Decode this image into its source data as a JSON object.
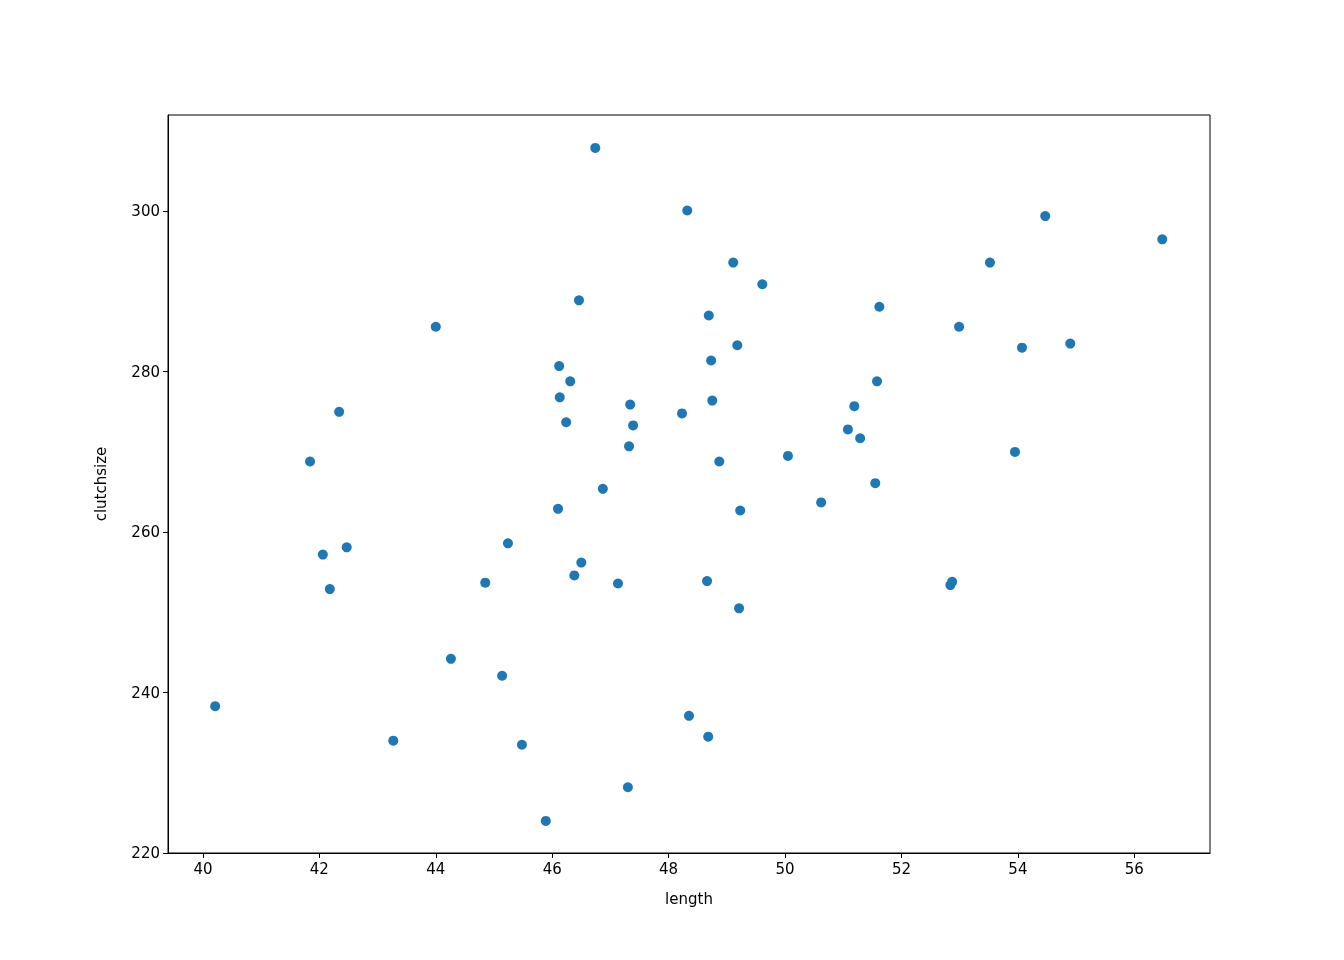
{
  "chart_data": {
    "type": "scatter",
    "xlabel": "length",
    "ylabel": "clutchsize",
    "xlim": [
      39.4,
      57.3
    ],
    "ylim": [
      220,
      312
    ],
    "xticks": [
      40,
      42,
      44,
      46,
      48,
      50,
      52,
      54,
      56
    ],
    "yticks": [
      220,
      240,
      260,
      280,
      300
    ],
    "grid": false,
    "marker": "circle",
    "series": [
      {
        "color": "#1f77b4",
        "x": [
          40.21,
          41.84,
          42.06,
          42.34,
          42.47,
          42.18,
          43.27,
          44.0,
          44.26,
          44.85,
          45.24,
          45.14,
          45.48,
          45.89,
          46.1,
          46.12,
          46.13,
          46.24,
          46.31,
          46.46,
          46.5,
          46.38,
          46.74,
          46.87,
          47.13,
          47.3,
          47.32,
          47.34,
          47.39,
          48.23,
          48.32,
          48.35,
          48.66,
          48.68,
          48.69,
          48.73,
          48.75,
          48.87,
          49.11,
          49.18,
          49.21,
          49.23,
          49.61,
          50.05,
          50.62,
          51.08,
          51.19,
          51.29,
          51.55,
          51.58,
          51.62,
          52.84,
          52.87,
          52.99,
          53.52,
          53.95,
          54.07,
          54.47,
          54.9,
          56.48
        ],
        "values": [
          238.3,
          268.8,
          257.2,
          275.0,
          258.1,
          252.9,
          234.0,
          285.6,
          244.2,
          253.7,
          258.6,
          242.1,
          233.5,
          224.0,
          262.9,
          280.7,
          276.8,
          273.7,
          278.8,
          288.9,
          256.2,
          254.6,
          307.9,
          265.4,
          253.6,
          228.2,
          270.7,
          275.9,
          273.3,
          274.8,
          300.1,
          237.1,
          253.9,
          234.5,
          287.0,
          281.4,
          276.4,
          268.8,
          293.6,
          283.3,
          250.5,
          262.7,
          290.9,
          269.5,
          263.7,
          272.8,
          275.7,
          271.7,
          266.1,
          278.8,
          288.1,
          253.4,
          253.8,
          285.6,
          293.6,
          270.0,
          283.0,
          299.4,
          283.5,
          296.5
        ]
      }
    ]
  }
}
